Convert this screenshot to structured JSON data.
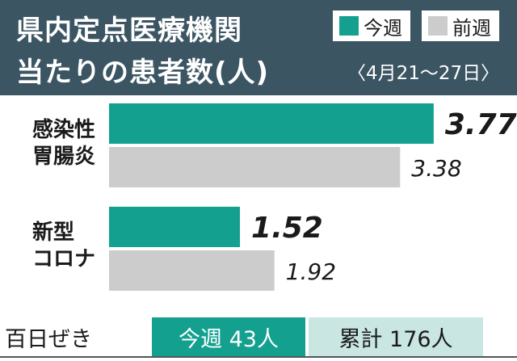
{
  "header": {
    "title_line1": "県内定点医療機関",
    "title_line2": "当たりの患者数(人)",
    "period": "〈4月21～27日〉",
    "legend": [
      {
        "label": "今週",
        "color": "#14a08f"
      },
      {
        "label": "前週",
        "color": "#cccccc"
      }
    ]
  },
  "chart_data": {
    "type": "bar",
    "orientation": "horizontal",
    "title": "県内定点医療機関当たりの患者数(人)",
    "subtitle": "〈4月21～27日〉",
    "categories": [
      {
        "line1": "感染性",
        "line2": "胃腸炎"
      },
      {
        "line1": "新型",
        "line2": "コロナ"
      }
    ],
    "series": [
      {
        "name": "今週",
        "color": "#14a08f",
        "values": [
          3.77,
          1.52
        ],
        "labels": [
          "3.77",
          "1.52"
        ]
      },
      {
        "name": "前週",
        "color": "#cccccc",
        "values": [
          3.38,
          1.92
        ],
        "labels": [
          "3.38",
          "1.92"
        ]
      }
    ],
    "xlim": [
      0,
      4
    ],
    "grid": false,
    "legend_position": "top-right"
  },
  "footer": {
    "label": "百日ぜき",
    "this_week": "今週 43人",
    "cumulative": "累計 176人"
  }
}
